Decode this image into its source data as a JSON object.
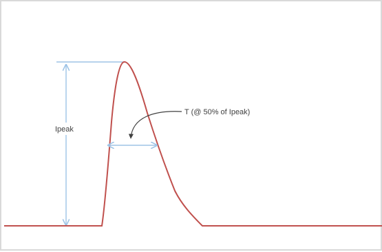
{
  "labels": {
    "peak": "Ipeak",
    "width": "T (@ 50% of Ipeak)"
  },
  "colors": {
    "pulse": "#c0504d",
    "dimension": "#9dc3e6",
    "annotation": "#404040",
    "border": "#d9d9d9"
  }
}
